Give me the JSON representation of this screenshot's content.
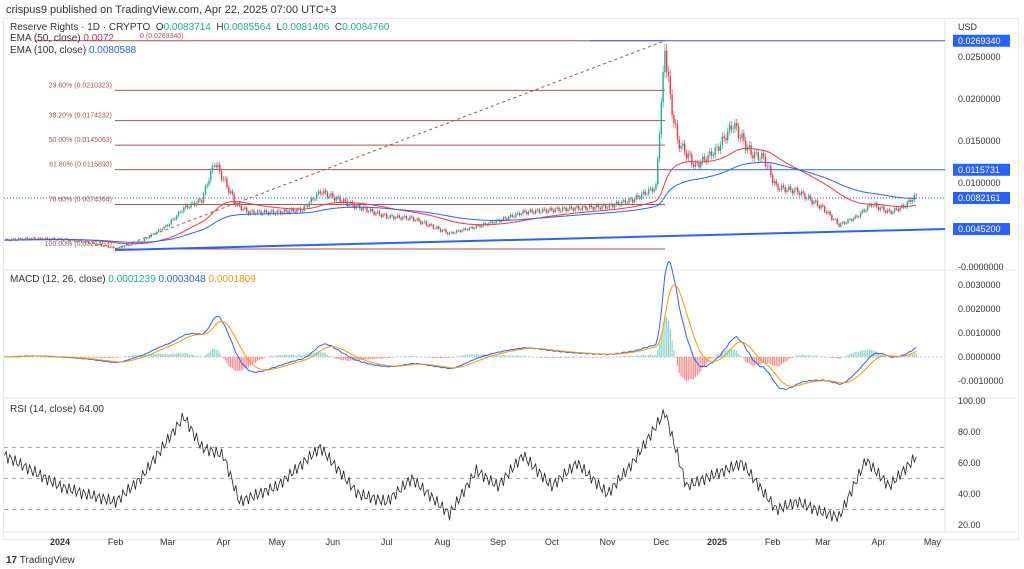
{
  "publisher": "crispus9 published on TradingView.com, Apr 22, 2025 07:00 UTC+3",
  "symbol": {
    "name": "Reserve Rights · 1D · CRYPTO",
    "o_label": "O",
    "o": "0.0083714",
    "h_label": "H",
    "h": "0.0085564",
    "l_label": "L",
    "l": "0.0081406",
    "c_label": "C",
    "c": "0.0084760"
  },
  "ema50": {
    "label": "EMA (50, close)",
    "value": "0.0072",
    "color": "#f23645"
  },
  "ema100": {
    "label": "EMA (100, close)",
    "value": "0.0080588",
    "color": "#2962ff"
  },
  "macd": {
    "label": "MACD (12, 26, close)",
    "hist": "0.0001239",
    "macd": "0.0003048",
    "signal": "0.0001809"
  },
  "rsi": {
    "label": "RSI (14, close)",
    "value": "64.00"
  },
  "currency": "USD",
  "logo": "TradingView",
  "colors": {
    "up": "#22ab94",
    "down": "#f23645",
    "blue": "#2962ff",
    "orange": "#ff9800",
    "fib": "#b05050"
  },
  "chart_data": [
    {
      "type": "candlestick",
      "title": "Reserve Rights · 1D · CRYPTO",
      "ylim": [
        -0.0005,
        0.028
      ],
      "price_ticks": [
        "0.0250000",
        "0.0200000",
        "0.0150000",
        "0.0100000",
        "-0.0000000"
      ],
      "price_tick_values": [
        0.025,
        0.02,
        0.015,
        0.01,
        0
      ],
      "price_badges": [
        {
          "label": "0.0269340",
          "value": 0.026934
        },
        {
          "label": "0.0115731",
          "value": 0.0115731
        },
        {
          "label": "0.0082161",
          "value": 0.0082161
        },
        {
          "label": "0.0045200",
          "value": 0.00452
        }
      ],
      "fib_levels": [
        {
          "label": "0 (0.0269340)",
          "value": 0.026934
        },
        {
          "label": "23.60% (0.0210323)",
          "value": 0.0210323
        },
        {
          "label": "38.20% (0.0174232)",
          "value": 0.0174232
        },
        {
          "label": "50.00% (0.0145063)",
          "value": 0.0145063
        },
        {
          "label": "61.80% (0.0115893)",
          "value": 0.0115893
        },
        {
          "label": "78.60% (0.0074364)",
          "value": 0.0074364
        },
        {
          "label": "100.00% (0.0021463)",
          "value": 0.0021463
        }
      ],
      "closes": [
        [
          "2023-12-01",
          0.0032
        ],
        [
          "2023-12-15",
          0.0034
        ],
        [
          "2024-01-01",
          0.0033
        ],
        [
          "2024-01-15",
          0.003
        ],
        [
          "2024-02-01",
          0.0022
        ],
        [
          "2024-02-15",
          0.003
        ],
        [
          "2024-03-01",
          0.005
        ],
        [
          "2024-03-10",
          0.007
        ],
        [
          "2024-03-20",
          0.008
        ],
        [
          "2024-03-27",
          0.0125
        ],
        [
          "2024-04-01",
          0.0105
        ],
        [
          "2024-04-08",
          0.0075
        ],
        [
          "2024-04-15",
          0.0065
        ],
        [
          "2024-05-01",
          0.0065
        ],
        [
          "2024-05-15",
          0.0068
        ],
        [
          "2024-05-25",
          0.009
        ],
        [
          "2024-06-10",
          0.0075
        ],
        [
          "2024-06-20",
          0.0068
        ],
        [
          "2024-07-01",
          0.006
        ],
        [
          "2024-07-15",
          0.0058
        ],
        [
          "2024-08-05",
          0.004
        ],
        [
          "2024-08-20",
          0.0048
        ],
        [
          "2024-09-01",
          0.0055
        ],
        [
          "2024-09-15",
          0.0065
        ],
        [
          "2024-10-01",
          0.0068
        ],
        [
          "2024-10-15",
          0.007
        ],
        [
          "2024-11-01",
          0.0072
        ],
        [
          "2024-11-15",
          0.008
        ],
        [
          "2024-11-28",
          0.0095
        ],
        [
          "2024-12-03",
          0.0262
        ],
        [
          "2024-12-06",
          0.02
        ],
        [
          "2024-12-10",
          0.015
        ],
        [
          "2024-12-20",
          0.012
        ],
        [
          "2025-01-01",
          0.014
        ],
        [
          "2025-01-10",
          0.017
        ],
        [
          "2025-01-20",
          0.0135
        ],
        [
          "2025-01-27",
          0.013
        ],
        [
          "2025-02-03",
          0.0095
        ],
        [
          "2025-02-15",
          0.009
        ],
        [
          "2025-03-01",
          0.007
        ],
        [
          "2025-03-10",
          0.005
        ],
        [
          "2025-03-20",
          0.006
        ],
        [
          "2025-03-28",
          0.0075
        ],
        [
          "2025-04-07",
          0.0065
        ],
        [
          "2025-04-15",
          0.0072
        ],
        [
          "2025-04-22",
          0.0085
        ]
      ]
    },
    {
      "type": "line",
      "title": "MACD (12, 26, close)",
      "ticks": [
        "0.0030000",
        "0.0020000",
        "0.0010000",
        "0.0000000",
        "-0.0010000"
      ],
      "tick_values": [
        0.003,
        0.002,
        0.001,
        0,
        -0.001
      ]
    },
    {
      "type": "line",
      "title": "RSI (14, close)",
      "ticks": [
        "100.00",
        "80.00",
        "60.00",
        "40.00",
        "20.00"
      ],
      "tick_values": [
        100,
        80,
        60,
        40,
        20
      ],
      "bands": [
        70,
        50,
        30
      ],
      "values": [
        [
          "2023-12-01",
          65
        ],
        [
          "2024-01-01",
          45
        ],
        [
          "2024-01-15",
          40
        ],
        [
          "2024-02-01",
          35
        ],
        [
          "2024-02-15",
          50
        ],
        [
          "2024-03-01",
          75
        ],
        [
          "2024-03-10",
          90
        ],
        [
          "2024-03-20",
          70
        ],
        [
          "2024-04-01",
          65
        ],
        [
          "2024-04-10",
          35
        ],
        [
          "2024-05-01",
          45
        ],
        [
          "2024-05-25",
          70
        ],
        [
          "2024-06-15",
          40
        ],
        [
          "2024-07-01",
          35
        ],
        [
          "2024-07-15",
          50
        ],
        [
          "2024-08-05",
          27
        ],
        [
          "2024-08-20",
          55
        ],
        [
          "2024-09-01",
          45
        ],
        [
          "2024-09-15",
          65
        ],
        [
          "2024-10-01",
          45
        ],
        [
          "2024-10-15",
          60
        ],
        [
          "2024-11-01",
          40
        ],
        [
          "2024-11-15",
          60
        ],
        [
          "2024-12-03",
          93
        ],
        [
          "2024-12-15",
          45
        ],
        [
          "2025-01-05",
          55
        ],
        [
          "2025-01-15",
          60
        ],
        [
          "2025-02-03",
          30
        ],
        [
          "2025-02-15",
          35
        ],
        [
          "2025-03-01",
          28
        ],
        [
          "2025-03-10",
          25
        ],
        [
          "2025-03-25",
          62
        ],
        [
          "2025-04-07",
          45
        ],
        [
          "2025-04-22",
          64
        ]
      ]
    }
  ],
  "time_axis": [
    "2024",
    "Feb",
    "Mar",
    "Apr",
    "May",
    "Jun",
    "Jul",
    "Aug",
    "Sep",
    "Oct",
    "Nov",
    "Dec",
    "2025",
    "Feb",
    "Mar",
    "Apr",
    "May"
  ]
}
